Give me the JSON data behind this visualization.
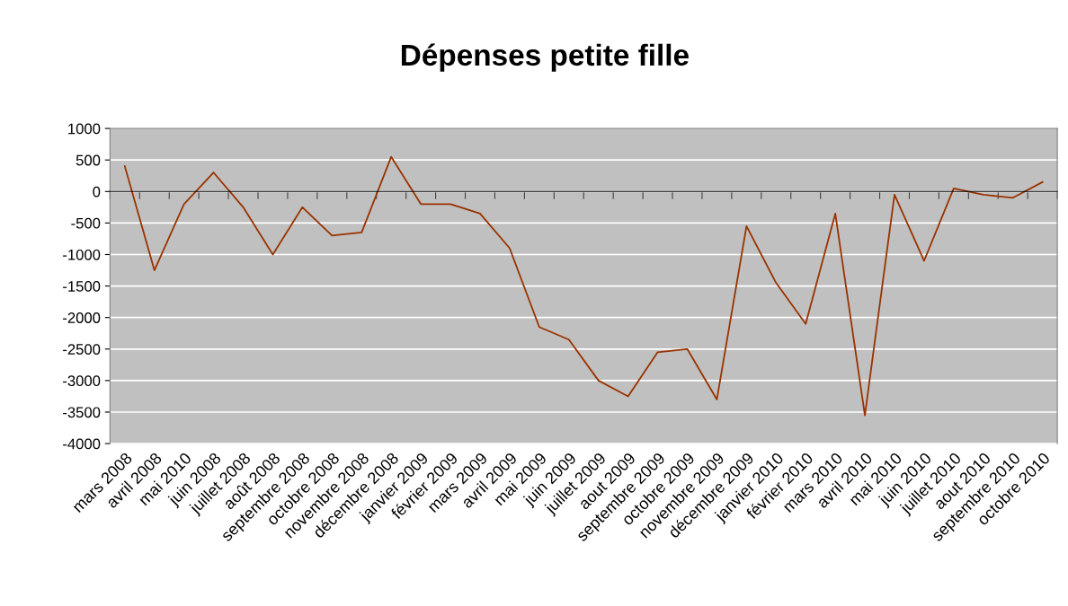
{
  "chart_data": {
    "type": "line",
    "title": "Dépenses petite fille",
    "categories": [
      "mars 2008",
      "avril 2008",
      "mai 2010",
      "juin 2008",
      "juillet 2008",
      "août 2008",
      "septembre 2008",
      "octobre 2008",
      "novembre 2008",
      "décembre 2008",
      "janvier 2009",
      "février 2009",
      "mars 2009",
      "avril 2009",
      "mai 2009",
      "juin 2009",
      "juillet 2009",
      "aout 2009",
      "septembre 2009",
      "octobre 2009",
      "novembre 2009",
      "décembre 2009",
      "janvier 2010",
      "février 2010",
      "mars 2010",
      "avril 2010",
      "mai 2010",
      "juin 2010",
      "juillet 2010",
      "aout 2010",
      "septembre 2010",
      "octobre 2010"
    ],
    "series": [
      {
        "color": "#993300",
        "values": [
          400,
          -1250,
          -200,
          300,
          -250,
          -1000,
          -250,
          -700,
          -650,
          550,
          -200,
          -200,
          -350,
          -900,
          -2150,
          -2350,
          -3000,
          -3250,
          -2550,
          -2500,
          -3300,
          -550,
          -1450,
          -2100,
          -350,
          -3550,
          -50,
          -1100,
          50,
          -50,
          -100,
          150
        ]
      }
    ],
    "ylim": [
      -4000,
      1000
    ],
    "yticks": [
      -4000,
      -3500,
      -3000,
      -2500,
      -2000,
      -1500,
      -1000,
      -500,
      0,
      500,
      1000
    ],
    "grid": "y",
    "legend": false,
    "marker": "none",
    "line_style": "solid"
  }
}
